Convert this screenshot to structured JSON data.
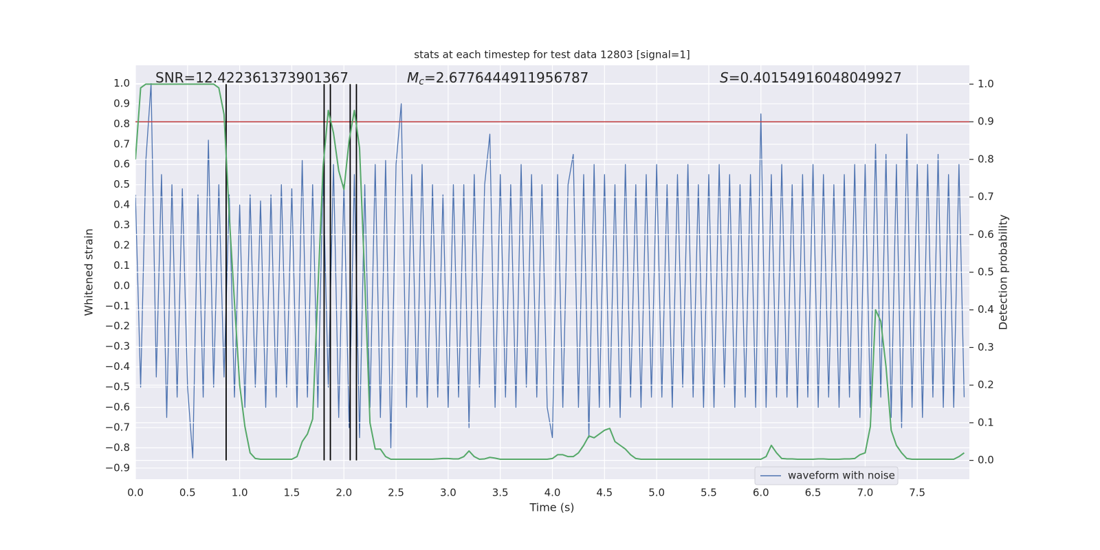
{
  "chart_data": {
    "type": "line",
    "title": "stats at each timestep for test data 12803 [signal=1]",
    "xlabel": "Time (s)",
    "ylabel": "Whitened strain",
    "y2label": "Detection probability",
    "annotations": [
      {
        "text": "SNR=12.422361373901367"
      },
      {
        "symbol": "M",
        "subscript": "c",
        "text": "=2.6776444911956787"
      },
      {
        "symbol": "S",
        "text": "=0.40154916048049927"
      }
    ],
    "x": [
      0,
      0.05,
      0.1,
      0.15,
      0.2,
      0.25,
      0.3,
      0.35,
      0.4,
      0.45,
      0.5,
      0.55,
      0.6,
      0.65,
      0.7,
      0.75,
      0.8,
      0.85,
      0.9,
      0.95,
      1,
      1.05,
      1.1,
      1.15,
      1.2,
      1.25,
      1.3,
      1.35,
      1.4,
      1.45,
      1.5,
      1.55,
      1.6,
      1.65,
      1.7,
      1.75,
      1.8,
      1.85,
      1.9,
      1.95,
      2,
      2.05,
      2.1,
      2.15,
      2.2,
      2.25,
      2.3,
      2.35,
      2.4,
      2.45,
      2.5,
      2.55,
      2.6,
      2.65,
      2.7,
      2.75,
      2.8,
      2.85,
      2.9,
      2.95,
      3,
      3.05,
      3.1,
      3.15,
      3.2,
      3.25,
      3.3,
      3.35,
      3.4,
      3.45,
      3.5,
      3.55,
      3.6,
      3.65,
      3.7,
      3.75,
      3.8,
      3.85,
      3.9,
      3.95,
      4,
      4.05,
      4.1,
      4.15,
      4.2,
      4.25,
      4.3,
      4.35,
      4.4,
      4.45,
      4.5,
      4.55,
      4.6,
      4.65,
      4.7,
      4.75,
      4.8,
      4.85,
      4.9,
      4.95,
      5,
      5.05,
      5.1,
      5.15,
      5.2,
      5.25,
      5.3,
      5.35,
      5.4,
      5.45,
      5.5,
      5.55,
      5.6,
      5.65,
      5.7,
      5.75,
      5.8,
      5.85,
      5.9,
      5.95,
      6,
      6.05,
      6.1,
      6.15,
      6.2,
      6.25,
      6.3,
      6.35,
      6.4,
      6.45,
      6.5,
      6.55,
      6.6,
      6.65,
      6.7,
      6.75,
      6.8,
      6.85,
      6.9,
      6.95,
      7,
      7.05,
      7.1,
      7.15,
      7.2,
      7.25,
      7.3,
      7.35,
      7.4,
      7.45,
      7.5,
      7.55,
      7.6,
      7.65,
      7.7,
      7.75,
      7.8,
      7.85,
      7.9,
      7.95
    ],
    "series": [
      {
        "name": "waveform with noise",
        "color": "#4c72b0",
        "axis": "y",
        "values": [
          0.45,
          -0.5,
          0.62,
          1.0,
          -0.45,
          0.55,
          -0.65,
          0.5,
          -0.55,
          0.48,
          -0.5,
          -0.85,
          0.45,
          -0.55,
          0.72,
          -0.5,
          0.5,
          -0.45,
          0.45,
          -0.55,
          0.4,
          -0.6,
          0.45,
          -0.5,
          0.42,
          -0.6,
          0.45,
          -0.55,
          0.5,
          -0.5,
          0.48,
          -0.6,
          0.62,
          -0.55,
          0.5,
          -0.6,
          0.55,
          -0.5,
          0.6,
          -0.65,
          0.5,
          -0.7,
          0.55,
          -0.75,
          0.5,
          -0.6,
          0.6,
          -0.65,
          0.62,
          -0.8,
          0.6,
          0.9,
          -0.6,
          0.55,
          -0.55,
          0.6,
          -0.6,
          0.5,
          -0.55,
          0.45,
          -0.6,
          0.5,
          -0.55,
          0.5,
          -0.7,
          0.55,
          -0.5,
          0.5,
          0.75,
          -0.6,
          0.55,
          -0.55,
          0.5,
          -0.6,
          0.6,
          -0.5,
          0.55,
          -0.55,
          0.5,
          -0.6,
          -0.75,
          0.55,
          -0.6,
          0.5,
          0.65,
          -0.6,
          0.55,
          -0.75,
          0.6,
          -0.6,
          0.55,
          -0.6,
          0.5,
          -0.65,
          0.6,
          -0.55,
          0.5,
          -0.6,
          0.55,
          -0.55,
          0.6,
          -0.55,
          0.5,
          -0.6,
          0.55,
          -0.5,
          0.6,
          -0.55,
          0.5,
          -0.6,
          0.55,
          -0.6,
          0.6,
          -0.5,
          0.55,
          -0.6,
          0.5,
          -0.55,
          0.55,
          -0.6,
          0.85,
          -0.6,
          0.55,
          -0.55,
          0.6,
          -0.55,
          0.5,
          -0.6,
          0.55,
          -0.55,
          0.6,
          -0.6,
          0.55,
          -0.55,
          0.5,
          -0.6,
          0.55,
          -0.55,
          0.6,
          -0.65,
          0.6,
          -0.6,
          0.7,
          -0.55,
          0.65,
          -0.65,
          0.6,
          -0.7,
          0.75,
          -0.6,
          0.6,
          -0.65,
          0.6,
          -0.55,
          0.65,
          -0.6,
          0.55,
          -0.6,
          0.6,
          -0.55
        ]
      },
      {
        "color": "#55a868",
        "axis": "y2",
        "values": [
          0.8,
          0.99,
          1.0,
          1.0,
          1.0,
          1.0,
          1.0,
          1.0,
          1.0,
          1.0,
          1.0,
          1.0,
          1.0,
          1.0,
          1.0,
          1.0,
          0.99,
          0.92,
          0.65,
          0.42,
          0.2,
          0.09,
          0.02,
          0.005,
          0.003,
          0.003,
          0.003,
          0.003,
          0.003,
          0.003,
          0.003,
          0.01,
          0.05,
          0.07,
          0.11,
          0.45,
          0.78,
          0.93,
          0.87,
          0.77,
          0.72,
          0.85,
          0.93,
          0.83,
          0.48,
          0.1,
          0.03,
          0.03,
          0.01,
          0.003,
          0.003,
          0.003,
          0.003,
          0.003,
          0.003,
          0.003,
          0.003,
          0.003,
          0.004,
          0.005,
          0.005,
          0.004,
          0.004,
          0.01,
          0.025,
          0.01,
          0.003,
          0.004,
          0.008,
          0.006,
          0.003,
          0.003,
          0.003,
          0.003,
          0.003,
          0.003,
          0.003,
          0.003,
          0.003,
          0.003,
          0.005,
          0.015,
          0.015,
          0.01,
          0.01,
          0.02,
          0.04,
          0.065,
          0.06,
          0.07,
          0.08,
          0.085,
          0.05,
          0.04,
          0.03,
          0.015,
          0.005,
          0.003,
          0.003,
          0.003,
          0.003,
          0.003,
          0.003,
          0.003,
          0.003,
          0.003,
          0.003,
          0.003,
          0.003,
          0.003,
          0.003,
          0.003,
          0.003,
          0.003,
          0.003,
          0.003,
          0.003,
          0.003,
          0.003,
          0.003,
          0.003,
          0.01,
          0.04,
          0.02,
          0.005,
          0.004,
          0.004,
          0.003,
          0.003,
          0.003,
          0.003,
          0.004,
          0.004,
          0.003,
          0.003,
          0.003,
          0.004,
          0.004,
          0.005,
          0.015,
          0.02,
          0.09,
          0.4,
          0.37,
          0.25,
          0.08,
          0.04,
          0.02,
          0.005,
          0.003,
          0.003,
          0.003,
          0.003,
          0.003,
          0.003,
          0.003,
          0.003,
          0.003,
          0.01,
          0.02
        ]
      }
    ],
    "hline": {
      "y": 0.9,
      "axis": "y2",
      "color": "#c03d3e"
    },
    "vlines": {
      "x": [
        0.87,
        1.81,
        1.87,
        2.06,
        2.12
      ],
      "ymin": 0,
      "ymax": 1,
      "axis": "y2",
      "color": "#000000"
    },
    "xlim": [
      0,
      8
    ],
    "xticks": [
      {
        "value": 0,
        "label": "0.0"
      },
      0.5,
      {
        "value": 1,
        "label": "1.0"
      },
      1.5,
      {
        "value": 2,
        "label": "2.0"
      },
      2.5,
      {
        "value": 3,
        "label": "3.0"
      },
      3.5,
      {
        "value": 4,
        "label": "4.0"
      },
      4.5,
      {
        "value": 5,
        "label": "5.0"
      },
      5.5,
      {
        "value": 6,
        "label": "6.0"
      },
      6.5,
      {
        "value": 7,
        "label": "7.0"
      },
      7.5
    ],
    "ylim": [
      -0.955,
      1.09
    ],
    "yticks": [
      {
        "value": -0.9,
        "label": "−0.9"
      },
      {
        "value": -0.8,
        "label": "−0.8"
      },
      {
        "value": -0.7,
        "label": "−0.7"
      },
      {
        "value": -0.6,
        "label": "−0.6"
      },
      {
        "value": -0.5,
        "label": "−0.5"
      },
      {
        "value": -0.4,
        "label": "−0.4"
      },
      {
        "value": -0.3,
        "label": "−0.3"
      },
      {
        "value": -0.2,
        "label": "−0.2"
      },
      {
        "value": -0.1,
        "label": "−0.1"
      },
      {
        "value": 0,
        "label": "0.0"
      },
      0.1,
      0.2,
      0.3,
      0.4,
      0.5,
      0.6,
      0.7,
      0.8,
      0.9,
      {
        "value": 1,
        "label": "1.0"
      }
    ],
    "y2lim": [
      -0.05,
      1.05
    ],
    "y2ticks": [
      {
        "value": 0,
        "label": "0.0"
      },
      0.1,
      0.2,
      0.3,
      0.4,
      0.5,
      0.6,
      0.7,
      0.8,
      0.9,
      {
        "value": 1,
        "label": "1.0"
      }
    ],
    "grid": true,
    "legend": "lower right",
    "background": "#eaeaf2"
  }
}
